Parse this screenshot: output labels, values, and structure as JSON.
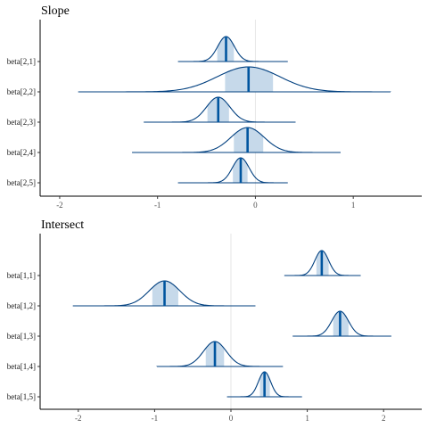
{
  "chart_data": [
    {
      "type": "area",
      "title": "Slope",
      "xlim": [
        -2.2,
        1.7
      ],
      "x_ticks": [
        -2,
        -1,
        0,
        1
      ],
      "x_tick_labels": [
        "-2",
        "-1",
        "0",
        "1"
      ],
      "reference_line_x": 0,
      "grid": false,
      "line_color": "#003f7f",
      "fill_color": "#c6d9ea",
      "median_color": "#00559f",
      "series": [
        {
          "name": "beta[2,1]",
          "center": -0.3,
          "sd": 0.085,
          "interval": [
            -0.39,
            -0.22
          ],
          "range": [
            -0.79,
            0.33
          ]
        },
        {
          "name": "beta[2,2]",
          "center": -0.07,
          "sd": 0.32,
          "interval": [
            -0.31,
            0.18
          ],
          "range": [
            -1.81,
            1.38
          ]
        },
        {
          "name": "beta[2,3]",
          "center": -0.38,
          "sd": 0.12,
          "interval": [
            -0.49,
            -0.27
          ],
          "range": [
            -1.14,
            0.41
          ]
        },
        {
          "name": "beta[2,4]",
          "center": -0.08,
          "sd": 0.17,
          "interval": [
            -0.22,
            0.08
          ],
          "range": [
            -1.26,
            0.87
          ]
        },
        {
          "name": "beta[2,5]",
          "center": -0.15,
          "sd": 0.085,
          "interval": [
            -0.23,
            -0.08
          ],
          "range": [
            -0.79,
            0.33
          ]
        }
      ]
    },
    {
      "type": "area",
      "title": "Intersect",
      "xlim": [
        -2.5,
        2.5
      ],
      "x_ticks": [
        -2,
        -1,
        0,
        1,
        2
      ],
      "x_tick_labels": [
        "-2",
        "-1",
        "0",
        "1",
        "2"
      ],
      "reference_line_x": 0,
      "grid": false,
      "line_color": "#003f7f",
      "fill_color": "#c6d9ea",
      "median_color": "#00559f",
      "series": [
        {
          "name": "beta[1,1]",
          "center": 1.19,
          "sd": 0.09,
          "interval": [
            1.12,
            1.28
          ],
          "range": [
            0.7,
            1.7
          ]
        },
        {
          "name": "beta[1,2]",
          "center": -0.87,
          "sd": 0.2,
          "interval": [
            -1.03,
            -0.69
          ],
          "range": [
            -2.07,
            0.32
          ]
        },
        {
          "name": "beta[1,3]",
          "center": 1.43,
          "sd": 0.11,
          "interval": [
            1.34,
            1.54
          ],
          "range": [
            0.81,
            2.1
          ]
        },
        {
          "name": "beta[1,4]",
          "center": -0.21,
          "sd": 0.15,
          "interval": [
            -0.33,
            -0.09
          ],
          "range": [
            -0.97,
            0.68
          ]
        },
        {
          "name": "beta[1,5]",
          "center": 0.44,
          "sd": 0.08,
          "interval": [
            0.38,
            0.51
          ],
          "range": [
            -0.05,
            0.93
          ]
        }
      ]
    }
  ]
}
